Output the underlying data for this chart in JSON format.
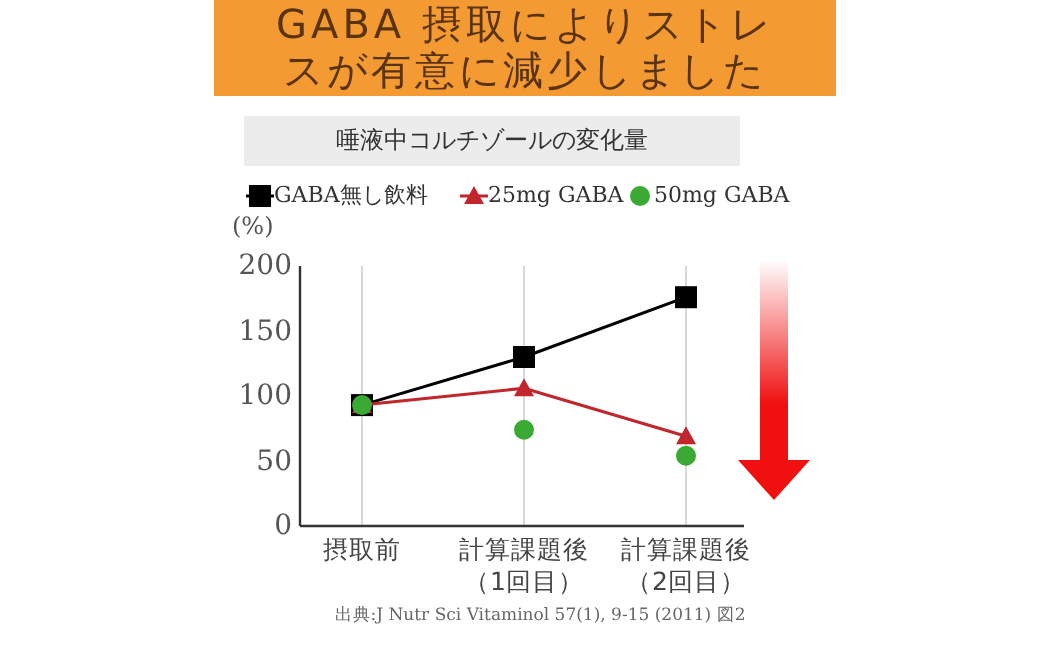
{
  "chart_data": {
    "type": "line",
    "title": "GABA 摂取によりストレスが有意に減少しました",
    "subtitle": "唾液中コルチゾールの変化量",
    "ylabel": "(%)",
    "categories": [
      "摂取前",
      "計算課題後（1回目）",
      "計算課題後（2回目）"
    ],
    "series": [
      {
        "name": "GABA無し飲料",
        "color": "#000000",
        "marker": "square",
        "values": [
          93,
          130,
          176
        ]
      },
      {
        "name": "25mg GABA",
        "color": "#c0262b",
        "marker": "triangle",
        "values": [
          93,
          106,
          69
        ]
      },
      {
        "name": "50mg GABA",
        "color": "#3aaa35",
        "marker": "circle",
        "type": "scatter",
        "values": [
          93,
          74,
          54
        ]
      }
    ],
    "ylim": [
      0,
      200
    ],
    "yticks": [
      0,
      50,
      100,
      150,
      200
    ],
    "grid": "x",
    "legend": "top",
    "annotations": [
      "出典:J Nutr Sci Vitaminol 57(1), 9-15 (2011) 図2"
    ]
  }
}
